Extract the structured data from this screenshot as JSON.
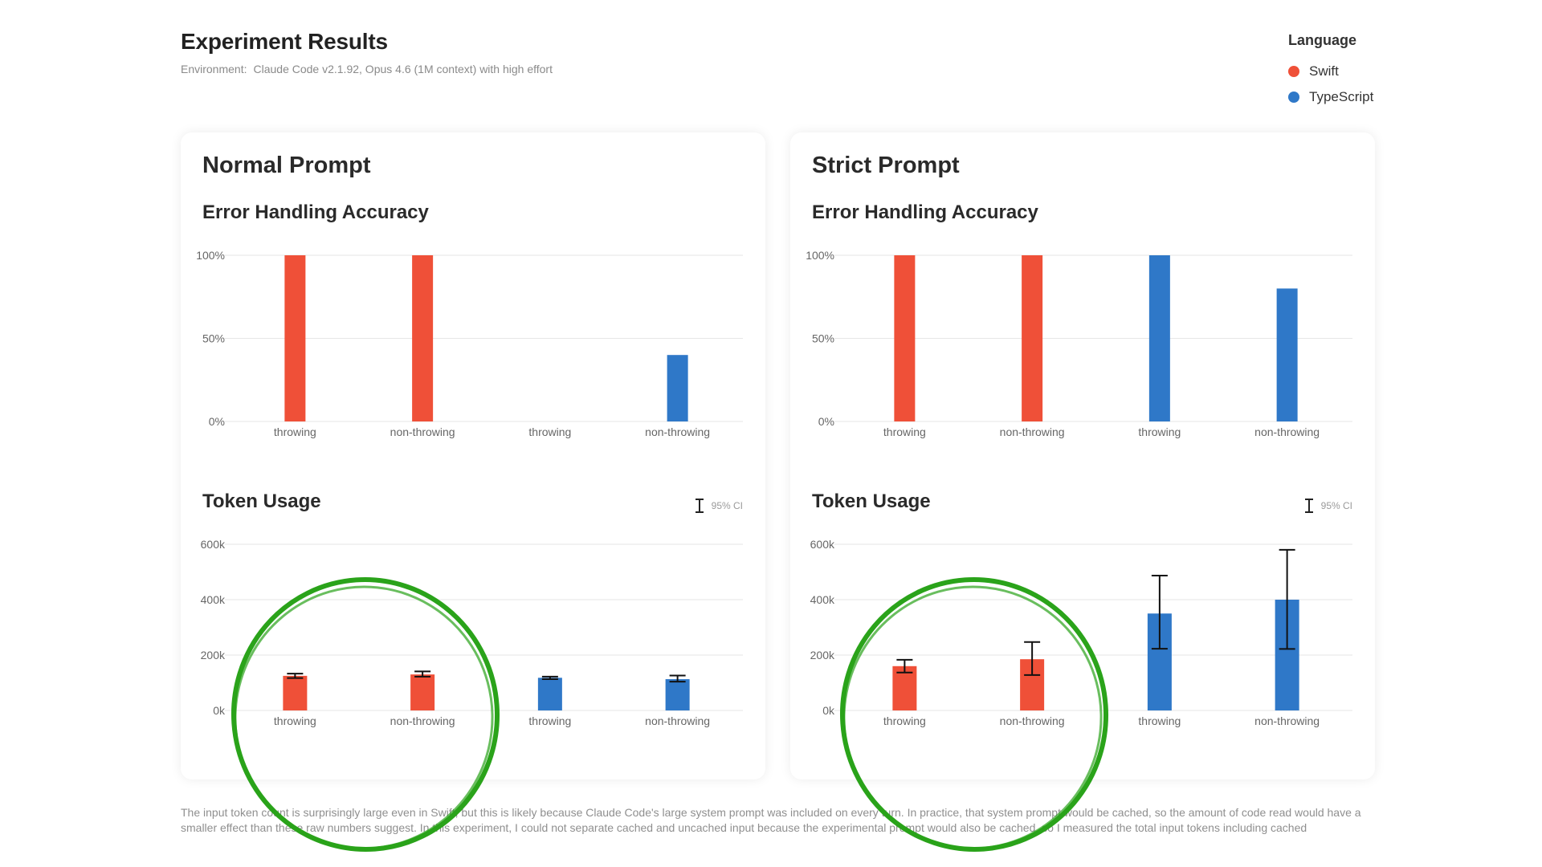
{
  "header": {
    "title": "Experiment Results",
    "environment_label": "Environment:",
    "environment_value": "Claude Code v2.1.92, Opus 4.6 (1M context) with high effort"
  },
  "legend": {
    "title": "Language",
    "items": [
      {
        "label": "Swift",
        "color": "#ef5038"
      },
      {
        "label": "TypeScript",
        "color": "#2f78c8"
      }
    ]
  },
  "colors": {
    "swift": "#ef5038",
    "typescript": "#2f78c8",
    "circle": "#2aa31a"
  },
  "panels": [
    {
      "title": "Normal Prompt",
      "accuracy_title": "Error Handling Accuracy",
      "token_title": "Token Usage",
      "ci_label": "95% CI"
    },
    {
      "title": "Strict Prompt",
      "accuracy_title": "Error Handling Accuracy",
      "token_title": "Token Usage",
      "ci_label": "95% CI"
    }
  ],
  "chart_data": [
    {
      "type": "bar",
      "panel": "Normal Prompt",
      "title": "Error Handling Accuracy",
      "categories": [
        "throwing",
        "non-throwing",
        "throwing",
        "non-throwing"
      ],
      "series_of_bar": [
        "Swift",
        "Swift",
        "TypeScript",
        "TypeScript"
      ],
      "values": [
        100,
        100,
        0,
        40
      ],
      "ylim": [
        0,
        100
      ],
      "yticks": [
        0,
        50,
        100
      ],
      "ytick_labels": [
        "0%",
        "50%",
        "100%"
      ],
      "grid": true
    },
    {
      "type": "bar",
      "panel": "Normal Prompt",
      "title": "Token Usage",
      "categories": [
        "throwing",
        "non-throwing",
        "throwing",
        "non-throwing"
      ],
      "series_of_bar": [
        "Swift",
        "Swift",
        "TypeScript",
        "TypeScript"
      ],
      "values": [
        125000,
        130000,
        118000,
        113000
      ],
      "ci_low": [
        117000,
        122000,
        113000,
        104000
      ],
      "ci_high": [
        133000,
        141000,
        122000,
        126000
      ],
      "ylim": [
        0,
        600000
      ],
      "yticks": [
        0,
        200000,
        400000,
        600000
      ],
      "ytick_labels": [
        "0k",
        "200k",
        "400k",
        "600k"
      ],
      "grid": true
    },
    {
      "type": "bar",
      "panel": "Strict Prompt",
      "title": "Error Handling Accuracy",
      "categories": [
        "throwing",
        "non-throwing",
        "throwing",
        "non-throwing"
      ],
      "series_of_bar": [
        "Swift",
        "Swift",
        "TypeScript",
        "TypeScript"
      ],
      "values": [
        100,
        100,
        100,
        80
      ],
      "ylim": [
        0,
        100
      ],
      "yticks": [
        0,
        50,
        100
      ],
      "ytick_labels": [
        "0%",
        "50%",
        "100%"
      ],
      "grid": true
    },
    {
      "type": "bar",
      "panel": "Strict Prompt",
      "title": "Token Usage",
      "categories": [
        "throwing",
        "non-throwing",
        "throwing",
        "non-throwing"
      ],
      "series_of_bar": [
        "Swift",
        "Swift",
        "TypeScript",
        "TypeScript"
      ],
      "values": [
        160000,
        185000,
        350000,
        400000
      ],
      "ci_low": [
        137000,
        128000,
        223000,
        222000
      ],
      "ci_high": [
        183000,
        247000,
        487000,
        580000
      ],
      "ylim": [
        0,
        600000
      ],
      "yticks": [
        0,
        200000,
        400000,
        600000
      ],
      "ytick_labels": [
        "0k",
        "200k",
        "400k",
        "600k"
      ],
      "grid": true
    }
  ],
  "footnote": "The input token count is surprisingly large even in Swift, but this is likely because Claude Code's large system prompt was included on every turn. In practice, that system prompt would be cached, so the amount of code read would have a smaller effect than these raw numbers suggest. In this experiment, I could not separate cached and uncached input because the experimental prompt would also be cached, so I measured the total input tokens including cached"
}
